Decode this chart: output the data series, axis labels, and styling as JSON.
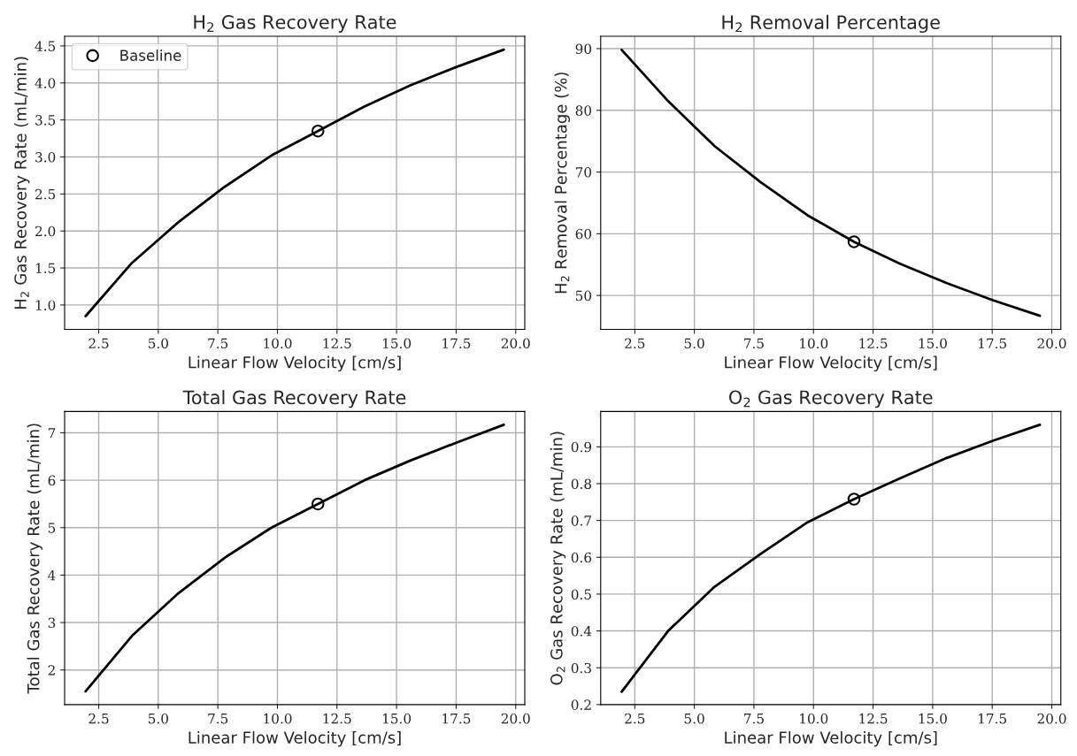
{
  "chart_data": [
    {
      "type": "line",
      "title": "H$_{2}$ Gas Recovery Rate",
      "xlabel": "Linear Flow Velocity [cm/s]",
      "ylabel": "H$_{2}$ Gas Recovery Rate (mL/min)",
      "x": [
        1.95,
        3.9,
        5.85,
        7.8,
        9.75,
        11.7,
        13.65,
        15.6,
        17.55,
        19.5
      ],
      "xlim": [
        1.07,
        20.38
      ],
      "xticks": [
        {
          "value": 2.5,
          "label": "2.5"
        },
        {
          "value": 5,
          "label": "5.0"
        },
        {
          "value": 7.5,
          "label": "7.5"
        },
        {
          "value": 10,
          "label": "10.0"
        },
        {
          "value": 12.5,
          "label": "12.5"
        },
        {
          "value": 15,
          "label": "15.0"
        },
        {
          "value": 17.5,
          "label": "17.5"
        },
        {
          "value": 20,
          "label": "20.0"
        }
      ],
      "ylim": [
        0.67,
        4.63
      ],
      "yticks": [
        {
          "value": 1,
          "label": "1.0"
        },
        1.5,
        {
          "value": 2,
          "label": "2.0"
        },
        2.5,
        {
          "value": 3,
          "label": "3.0"
        },
        3.5,
        {
          "value": 4,
          "label": "4.0"
        },
        4.5
      ],
      "grid": true,
      "legend": "top left",
      "series": [
        {
          "color": "#000000",
          "values": [
            0.85,
            1.57,
            2.12,
            2.6,
            3.02,
            3.35,
            3.68,
            3.97,
            4.22,
            4.45
          ]
        },
        {
          "type": "scatter",
          "name": "Baseline",
          "color": "#000000",
          "marker": "circle",
          "values": [
            null,
            null,
            null,
            null,
            null,
            3.35,
            null,
            null,
            null,
            null
          ]
        }
      ]
    },
    {
      "type": "line",
      "title": "H$_{2}$ Removal Percentage",
      "xlabel": "Linear Flow Velocity [cm/s]",
      "ylabel": "H$_{2}$ Removal Percentage (%)",
      "x": [
        1.95,
        3.9,
        5.85,
        7.8,
        9.75,
        11.7,
        13.65,
        15.6,
        17.55,
        19.5
      ],
      "xlim": [
        1.07,
        20.38
      ],
      "xticks": [
        {
          "value": 2.5,
          "label": "2.5"
        },
        {
          "value": 5,
          "label": "5.0"
        },
        {
          "value": 7.5,
          "label": "7.5"
        },
        {
          "value": 10,
          "label": "10.0"
        },
        {
          "value": 12.5,
          "label": "12.5"
        },
        {
          "value": 15,
          "label": "15.0"
        },
        {
          "value": 17.5,
          "label": "17.5"
        },
        {
          "value": 20,
          "label": "20.0"
        }
      ],
      "ylim": [
        44.5,
        92.0
      ],
      "yticks": [
        50,
        60,
        70,
        80,
        90
      ],
      "grid": true,
      "series": [
        {
          "color": "#000000",
          "values": [
            89.8,
            81.5,
            74.2,
            68.3,
            63.0,
            58.7,
            55.1,
            52.0,
            49.2,
            46.7
          ]
        },
        {
          "type": "scatter",
          "color": "#000000",
          "marker": "circle",
          "values": [
            null,
            null,
            null,
            null,
            null,
            58.7,
            null,
            null,
            null,
            null
          ]
        }
      ]
    },
    {
      "type": "line",
      "title": "Total Gas Recovery Rate",
      "xlabel": "Linear Flow Velocity [cm/s]",
      "ylabel": "Total Gas Recovery Rate (mL/min)",
      "x": [
        1.95,
        3.9,
        5.85,
        7.8,
        9.75,
        11.7,
        13.65,
        15.6,
        17.55,
        19.5
      ],
      "xlim": [
        1.07,
        20.38
      ],
      "xticks": [
        {
          "value": 2.5,
          "label": "2.5"
        },
        {
          "value": 5,
          "label": "5.0"
        },
        {
          "value": 7.5,
          "label": "7.5"
        },
        {
          "value": 10,
          "label": "10.0"
        },
        {
          "value": 12.5,
          "label": "12.5"
        },
        {
          "value": 15,
          "label": "15.0"
        },
        {
          "value": 17.5,
          "label": "17.5"
        },
        {
          "value": 20,
          "label": "20.0"
        }
      ],
      "ylim": [
        1.27,
        7.45
      ],
      "yticks": [
        2,
        3,
        4,
        5,
        6,
        7
      ],
      "grid": true,
      "series": [
        {
          "color": "#000000",
          "values": [
            1.55,
            2.72,
            3.62,
            4.37,
            5.0,
            5.5,
            6.0,
            6.42,
            6.8,
            7.17
          ]
        },
        {
          "type": "scatter",
          "color": "#000000",
          "marker": "circle",
          "values": [
            null,
            null,
            null,
            null,
            null,
            5.5,
            null,
            null,
            null,
            null
          ]
        }
      ]
    },
    {
      "type": "line",
      "title": "O$_{2}$ Gas Recovery Rate",
      "xlabel": "Linear Flow Velocity [cm/s]",
      "ylabel": "O$_{2}$ Gas Recovery Rate (mL/min)",
      "x": [
        1.95,
        3.9,
        5.85,
        7.8,
        9.75,
        11.7,
        13.65,
        15.6,
        17.55,
        19.5
      ],
      "xlim": [
        1.07,
        20.38
      ],
      "xticks": [
        {
          "value": 2.5,
          "label": "2.5"
        },
        {
          "value": 5,
          "label": "5.0"
        },
        {
          "value": 7.5,
          "label": "7.5"
        },
        {
          "value": 10,
          "label": "10.0"
        },
        {
          "value": 12.5,
          "label": "12.5"
        },
        {
          "value": 15,
          "label": "15.0"
        },
        {
          "value": 17.5,
          "label": "17.5"
        },
        {
          "value": 20,
          "label": "20.0"
        }
      ],
      "ylim": [
        0.2,
        0.996
      ],
      "yticks": [
        0.2,
        0.3,
        0.4,
        0.5,
        0.6,
        0.7,
        0.8,
        0.9
      ],
      "grid": true,
      "series": [
        {
          "color": "#000000",
          "values": [
            0.235,
            0.4,
            0.52,
            0.61,
            0.695,
            0.758,
            0.815,
            0.87,
            0.917,
            0.96
          ]
        },
        {
          "type": "scatter",
          "color": "#000000",
          "marker": "circle",
          "values": [
            null,
            null,
            null,
            null,
            null,
            0.758,
            null,
            null,
            null,
            null
          ]
        }
      ]
    }
  ]
}
